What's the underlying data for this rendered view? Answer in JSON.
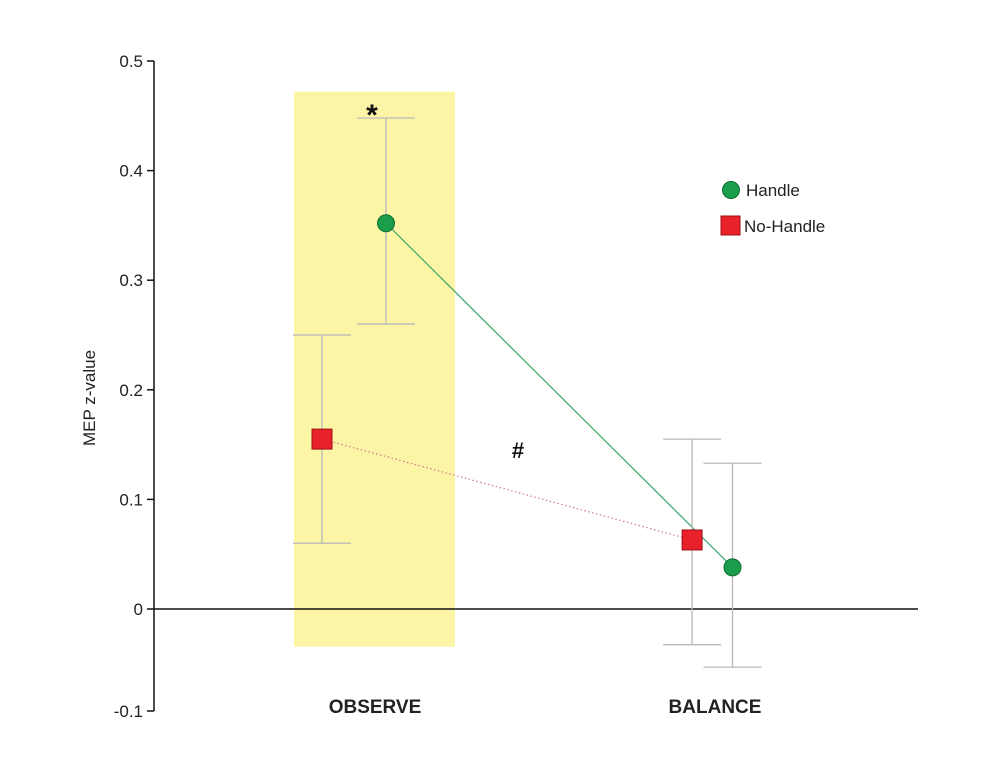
{
  "chart_data": {
    "type": "scatter",
    "ylabel": "MEP z-value",
    "xlabel": "",
    "ylim": [
      -0.1,
      0.5
    ],
    "yticks": [
      "-0.1",
      "0",
      "0.1",
      "0.2",
      "0.3",
      "0.4",
      "0.5"
    ],
    "ytick_values": [
      -0.1,
      0,
      0.1,
      0.2,
      0.3,
      0.4,
      0.5
    ],
    "categories": [
      "OBSERVE",
      "BALANCE"
    ],
    "series": [
      {
        "name": "Handle",
        "marker": "circle",
        "color": "#1a9e4b",
        "line_color": "#3aa86a",
        "line_style": "solid",
        "values": [
          0.352,
          0.038
        ],
        "err_low": [
          0.26,
          -0.057
        ],
        "err_high": [
          0.448,
          0.133
        ]
      },
      {
        "name": "No-Handle",
        "marker": "square",
        "color": "#e8212a",
        "line_color": "#d07a8a",
        "line_style": "dotted",
        "values": [
          0.155,
          0.063
        ],
        "err_low": [
          0.06,
          -0.035
        ],
        "err_high": [
          0.25,
          0.155
        ]
      }
    ],
    "highlight": {
      "category": "OBSERVE",
      "color": "#fdf5a6",
      "y_range": [
        -0.037,
        0.472
      ]
    },
    "annotations": [
      {
        "text": "*",
        "category": "OBSERVE",
        "y": 0.48
      },
      {
        "text": "#",
        "between": true,
        "y": 0.155
      }
    ],
    "legend": {
      "position": "top-right"
    },
    "grid": false
  }
}
